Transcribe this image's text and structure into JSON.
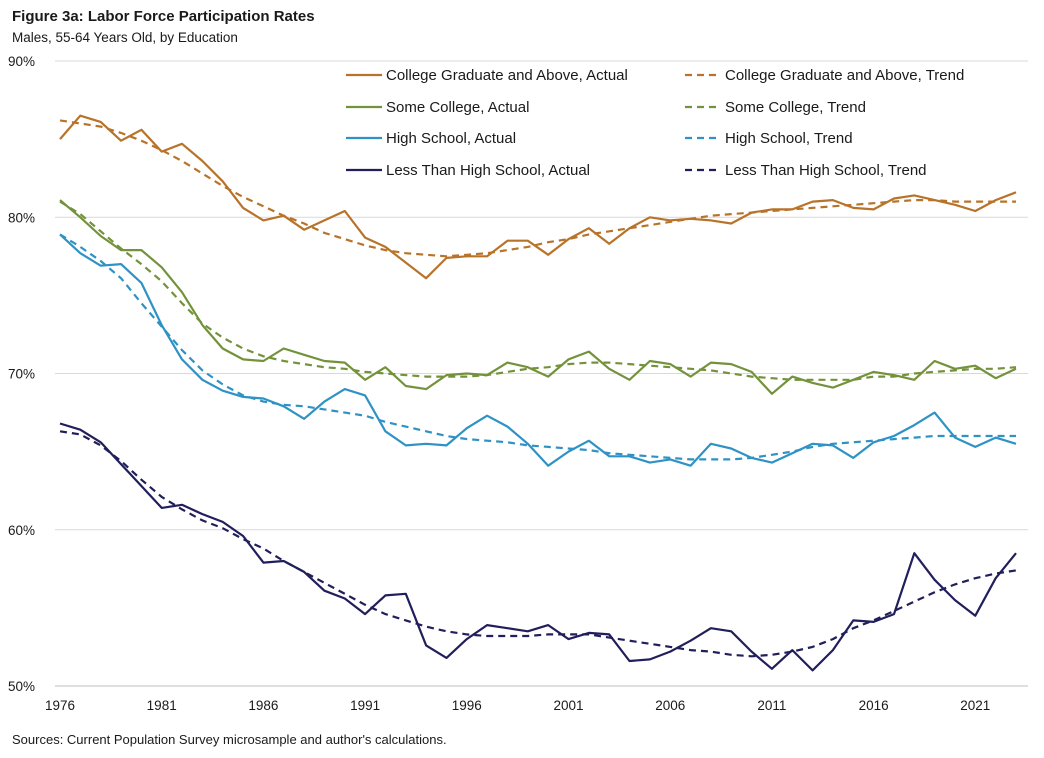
{
  "header": {
    "title": "Figure 3a: Labor Force Participation Rates",
    "subtitle": "Males, 55-64 Years Old, by Education"
  },
  "footer": {
    "source": "Sources: Current Population Survey microsample and author's calculations."
  },
  "chart_data": {
    "type": "line",
    "title": "Figure 3a: Labor Force Participation Rates",
    "subtitle": "Males, 55-64 Years Old, by Education",
    "xlabel": "",
    "ylabel": "",
    "xlim": [
      1976,
      2023
    ],
    "ylim": [
      50,
      90
    ],
    "grid": "horizontal",
    "legend_position": "top-right",
    "x_ticks": [
      1976,
      1981,
      1986,
      1991,
      1996,
      2001,
      2006,
      2011,
      2016,
      2021
    ],
    "x_tick_labels": [
      "1976",
      "1981",
      "1986",
      "1991",
      "1996",
      "2001",
      "2006",
      "2011",
      "2016",
      "2021"
    ],
    "y_ticks": [
      50,
      60,
      70,
      80,
      90
    ],
    "y_tick_labels": [
      "50%",
      "60%",
      "70%",
      "80%",
      "90%"
    ],
    "x": [
      1976,
      1977,
      1978,
      1979,
      1980,
      1981,
      1982,
      1983,
      1984,
      1985,
      1986,
      1987,
      1988,
      1989,
      1990,
      1991,
      1992,
      1993,
      1994,
      1995,
      1996,
      1997,
      1998,
      1999,
      2000,
      2001,
      2002,
      2003,
      2004,
      2005,
      2006,
      2007,
      2008,
      2009,
      2010,
      2011,
      2012,
      2013,
      2014,
      2015,
      2016,
      2017,
      2018,
      2019,
      2020,
      2021,
      2022,
      2023
    ],
    "series": [
      {
        "name": "College Graduate and Above, Actual",
        "color": "#b8732a",
        "dash": "solid",
        "values": [
          85.0,
          86.5,
          86.1,
          84.9,
          85.6,
          84.2,
          84.7,
          83.6,
          82.3,
          80.6,
          79.8,
          80.1,
          79.2,
          79.8,
          80.4,
          78.7,
          78.1,
          77.1,
          76.1,
          77.4,
          77.5,
          77.5,
          78.5,
          78.5,
          77.6,
          78.6,
          79.3,
          78.3,
          79.3,
          80.0,
          79.8,
          79.9,
          79.8,
          79.6,
          80.3,
          80.5,
          80.5,
          81.0,
          81.1,
          80.6,
          80.5,
          81.2,
          81.4,
          81.1,
          80.8,
          80.4,
          81.1,
          81.6
        ]
      },
      {
        "name": "College Graduate and Above, Trend",
        "color": "#b8732a",
        "dash": "dashed",
        "values": [
          86.2,
          86.0,
          85.8,
          85.4,
          84.9,
          84.3,
          83.6,
          82.8,
          82.0,
          81.3,
          80.7,
          80.1,
          79.6,
          79.0,
          78.6,
          78.2,
          77.9,
          77.7,
          77.6,
          77.5,
          77.6,
          77.7,
          77.9,
          78.1,
          78.4,
          78.6,
          78.9,
          79.1,
          79.3,
          79.5,
          79.7,
          79.9,
          80.1,
          80.2,
          80.3,
          80.4,
          80.5,
          80.6,
          80.7,
          80.8,
          80.9,
          81.0,
          81.1,
          81.1,
          81.0,
          81.0,
          81.0,
          81.0
        ]
      },
      {
        "name": "Some College, Actual",
        "color": "#73923b",
        "dash": "solid",
        "values": [
          81.1,
          80.0,
          78.8,
          77.9,
          77.9,
          76.8,
          75.2,
          73.1,
          71.6,
          70.9,
          70.8,
          71.6,
          71.2,
          70.8,
          70.7,
          69.6,
          70.4,
          69.2,
          69.0,
          69.9,
          70.0,
          69.9,
          70.7,
          70.4,
          69.8,
          70.9,
          71.4,
          70.3,
          69.6,
          70.8,
          70.6,
          69.8,
          70.7,
          70.6,
          70.1,
          68.7,
          69.8,
          69.4,
          69.1,
          69.6,
          70.1,
          69.9,
          69.6,
          70.8,
          70.3,
          70.5,
          69.7,
          70.3
        ]
      },
      {
        "name": "Some College, Trend",
        "color": "#73923b",
        "dash": "dashed",
        "values": [
          81.0,
          80.2,
          79.1,
          78.0,
          77.0,
          75.9,
          74.5,
          73.2,
          72.3,
          71.6,
          71.1,
          70.8,
          70.6,
          70.4,
          70.3,
          70.1,
          70.0,
          69.9,
          69.8,
          69.8,
          69.8,
          69.9,
          70.1,
          70.3,
          70.4,
          70.6,
          70.7,
          70.7,
          70.6,
          70.5,
          70.4,
          70.3,
          70.2,
          70.0,
          69.8,
          69.7,
          69.6,
          69.6,
          69.6,
          69.6,
          69.8,
          69.8,
          70.0,
          70.1,
          70.2,
          70.3,
          70.3,
          70.4
        ]
      },
      {
        "name": "High School, Actual",
        "color": "#2f92c5",
        "dash": "solid",
        "values": [
          78.9,
          77.7,
          76.9,
          77.0,
          75.8,
          73.1,
          70.9,
          69.6,
          68.9,
          68.5,
          68.4,
          67.9,
          67.1,
          68.2,
          69.0,
          68.6,
          66.3,
          65.4,
          65.5,
          65.4,
          66.5,
          67.3,
          66.6,
          65.5,
          64.1,
          65.0,
          65.7,
          64.7,
          64.7,
          64.3,
          64.5,
          64.1,
          65.5,
          65.2,
          64.6,
          64.3,
          64.9,
          65.5,
          65.4,
          64.6,
          65.6,
          66.0,
          66.7,
          67.5,
          65.9,
          65.3,
          65.9,
          65.5
        ]
      },
      {
        "name": "High School, Trend",
        "color": "#2f92c5",
        "dash": "dashed",
        "values": [
          78.9,
          78.1,
          77.2,
          76.1,
          74.5,
          73.0,
          71.5,
          70.2,
          69.3,
          68.6,
          68.2,
          68.0,
          67.9,
          67.7,
          67.5,
          67.3,
          66.9,
          66.6,
          66.3,
          66.0,
          65.8,
          65.7,
          65.6,
          65.4,
          65.3,
          65.2,
          65.1,
          64.9,
          64.8,
          64.7,
          64.6,
          64.5,
          64.5,
          64.5,
          64.6,
          64.8,
          65.0,
          65.3,
          65.5,
          65.6,
          65.7,
          65.8,
          65.9,
          66.0,
          66.0,
          66.0,
          66.0,
          66.0
        ]
      },
      {
        "name": "Less Than High School, Actual",
        "color": "#211f5b",
        "dash": "solid",
        "values": [
          66.8,
          66.4,
          65.6,
          64.2,
          62.8,
          61.4,
          61.6,
          61.0,
          60.5,
          59.6,
          57.9,
          58.0,
          57.3,
          56.1,
          55.6,
          54.6,
          55.8,
          55.9,
          52.6,
          51.8,
          53.0,
          53.9,
          53.7,
          53.5,
          53.9,
          53.0,
          53.4,
          53.3,
          51.6,
          51.7,
          52.2,
          52.9,
          53.7,
          53.5,
          52.2,
          51.1,
          52.3,
          51.0,
          52.3,
          54.2,
          54.1,
          54.6,
          58.5,
          56.8,
          55.5,
          54.5,
          56.9,
          58.5
        ]
      },
      {
        "name": "Less Than High School, Trend",
        "color": "#211f5b",
        "dash": "dashed",
        "values": [
          66.3,
          66.1,
          65.4,
          64.4,
          63.2,
          62.1,
          61.3,
          60.6,
          60.1,
          59.4,
          58.8,
          58.0,
          57.3,
          56.6,
          55.9,
          55.2,
          54.6,
          54.2,
          53.8,
          53.5,
          53.3,
          53.2,
          53.2,
          53.2,
          53.3,
          53.3,
          53.3,
          53.1,
          52.9,
          52.7,
          52.5,
          52.3,
          52.2,
          52.0,
          51.9,
          52.0,
          52.2,
          52.5,
          53.0,
          53.7,
          54.2,
          54.8,
          55.4,
          56.0,
          56.5,
          56.9,
          57.2,
          57.4
        ]
      }
    ]
  }
}
